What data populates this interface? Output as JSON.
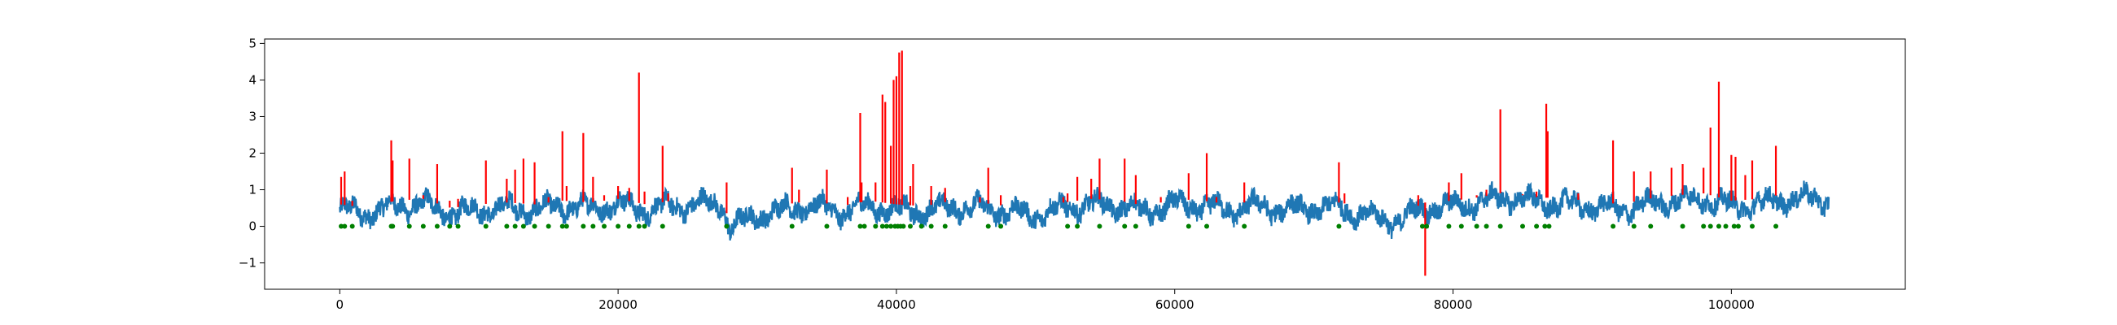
{
  "chart_data": {
    "type": "line",
    "title": "",
    "xlabel": "",
    "ylabel": "",
    "xlim": [
      -5400,
      112500
    ],
    "ylim": [
      -1.72,
      5.12
    ],
    "x_ticks": [
      0,
      20000,
      40000,
      60000,
      80000,
      100000
    ],
    "x_tick_labels": [
      "0",
      "20000",
      "40000",
      "60000",
      "80000",
      "100000"
    ],
    "y_ticks": [
      -1,
      0,
      1,
      2,
      3,
      4,
      5
    ],
    "y_tick_labels": [
      "−1",
      "0",
      "1",
      "2",
      "3",
      "4",
      "5"
    ],
    "grid": false,
    "colors": {
      "signal": "#1f77b4",
      "anomaly": "#ff0000",
      "marker": "#008000"
    },
    "signal": {
      "x_range": [
        0,
        107000
      ],
      "points": [
        [
          0,
          0.45
        ],
        [
          2000,
          0.35
        ],
        [
          4000,
          0.55
        ],
        [
          6000,
          0.6
        ],
        [
          8000,
          0.35
        ],
        [
          10000,
          0.45
        ],
        [
          12000,
          0.5
        ],
        [
          14000,
          0.45
        ],
        [
          16000,
          0.55
        ],
        [
          18000,
          0.5
        ],
        [
          20000,
          0.6
        ],
        [
          22000,
          0.45
        ],
        [
          24000,
          0.55
        ],
        [
          26000,
          0.6
        ],
        [
          27500,
          0.6
        ],
        [
          28000,
          -0.05
        ],
        [
          30000,
          0.3
        ],
        [
          32000,
          0.45
        ],
        [
          34000,
          0.55
        ],
        [
          36000,
          0.4
        ],
        [
          38000,
          0.55
        ],
        [
          40000,
          0.45
        ],
        [
          42000,
          0.4
        ],
        [
          44000,
          0.55
        ],
        [
          46000,
          0.5
        ],
        [
          48000,
          0.4
        ],
        [
          50000,
          0.3
        ],
        [
          52000,
          0.5
        ],
        [
          54000,
          0.6
        ],
        [
          56000,
          0.55
        ],
        [
          58000,
          0.4
        ],
        [
          60000,
          0.6
        ],
        [
          62000,
          0.55
        ],
        [
          64000,
          0.45
        ],
        [
          66000,
          0.55
        ],
        [
          68000,
          0.45
        ],
        [
          70000,
          0.5
        ],
        [
          72000,
          0.5
        ],
        [
          74000,
          0.25
        ],
        [
          76000,
          0.15
        ],
        [
          78000,
          0.5
        ],
        [
          80000,
          0.55
        ],
        [
          82000,
          0.65
        ],
        [
          84000,
          0.8
        ],
        [
          86000,
          0.65
        ],
        [
          88000,
          0.6
        ],
        [
          90000,
          0.55
        ],
        [
          92000,
          0.45
        ],
        [
          94000,
          0.6
        ],
        [
          96000,
          0.7
        ],
        [
          98000,
          0.75
        ],
        [
          100000,
          0.55
        ],
        [
          102000,
          0.6
        ],
        [
          104000,
          0.75
        ],
        [
          106000,
          0.75
        ],
        [
          107000,
          0.7
        ]
      ]
    },
    "anomaly_spikes": [
      [
        100,
        1.35
      ],
      [
        350,
        1.5
      ],
      [
        900,
        0.7
      ],
      [
        3700,
        2.35
      ],
      [
        3800,
        1.8
      ],
      [
        5000,
        1.85
      ],
      [
        6000,
        0.85
      ],
      [
        7000,
        1.7
      ],
      [
        7900,
        0.7
      ],
      [
        8500,
        0.75
      ],
      [
        10500,
        1.8
      ],
      [
        12000,
        1.3
      ],
      [
        12600,
        1.55
      ],
      [
        13200,
        1.85
      ],
      [
        14000,
        1.75
      ],
      [
        15000,
        0.8
      ],
      [
        16000,
        2.6
      ],
      [
        16300,
        1.1
      ],
      [
        17500,
        2.55
      ],
      [
        18200,
        1.35
      ],
      [
        19000,
        0.85
      ],
      [
        20000,
        1.1
      ],
      [
        20800,
        1.05
      ],
      [
        21500,
        4.2
      ],
      [
        21900,
        0.95
      ],
      [
        23200,
        2.2
      ],
      [
        23600,
        0.9
      ],
      [
        27800,
        1.2
      ],
      [
        32500,
        1.6
      ],
      [
        33000,
        1.0
      ],
      [
        35000,
        1.55
      ],
      [
        36500,
        0.8
      ],
      [
        37400,
        3.1
      ],
      [
        37500,
        1.2
      ],
      [
        38500,
        1.2
      ],
      [
        39000,
        3.6
      ],
      [
        39200,
        3.4
      ],
      [
        39600,
        2.2
      ],
      [
        39800,
        4.0
      ],
      [
        40000,
        4.1
      ],
      [
        40200,
        4.75
      ],
      [
        40400,
        4.8
      ],
      [
        41000,
        1.1
      ],
      [
        41200,
        1.7
      ],
      [
        42500,
        1.1
      ],
      [
        43500,
        1.05
      ],
      [
        46000,
        0.8
      ],
      [
        46600,
        1.6
      ],
      [
        47500,
        0.85
      ],
      [
        52000,
        0.8
      ],
      [
        52300,
        0.9
      ],
      [
        53000,
        1.35
      ],
      [
        54000,
        1.3
      ],
      [
        54600,
        1.85
      ],
      [
        56400,
        1.85
      ],
      [
        57200,
        1.4
      ],
      [
        59000,
        0.8
      ],
      [
        61000,
        1.45
      ],
      [
        62300,
        2.0
      ],
      [
        63000,
        0.8
      ],
      [
        65000,
        1.2
      ],
      [
        71800,
        1.75
      ],
      [
        72200,
        0.9
      ],
      [
        77500,
        0.85
      ],
      [
        78000,
        -1.35
      ],
      [
        79700,
        1.2
      ],
      [
        80600,
        1.45
      ],
      [
        81700,
        0.85
      ],
      [
        82400,
        1.0
      ],
      [
        83400,
        3.2
      ],
      [
        85000,
        0.85
      ],
      [
        86000,
        0.95
      ],
      [
        86700,
        3.35
      ],
      [
        86800,
        2.6
      ],
      [
        89000,
        0.9
      ],
      [
        91500,
        2.35
      ],
      [
        93000,
        1.5
      ],
      [
        94200,
        1.5
      ],
      [
        95700,
        1.6
      ],
      [
        96500,
        1.7
      ],
      [
        98000,
        1.6
      ],
      [
        98500,
        2.7
      ],
      [
        99100,
        3.95
      ],
      [
        100000,
        1.95
      ],
      [
        100300,
        1.9
      ],
      [
        101000,
        1.4
      ],
      [
        101500,
        1.8
      ],
      [
        103200,
        2.2
      ]
    ],
    "markers": {
      "y": 0,
      "x": [
        100,
        350,
        900,
        3700,
        3800,
        5000,
        6000,
        7000,
        7900,
        8500,
        10500,
        12000,
        12600,
        13200,
        14000,
        15000,
        16000,
        16300,
        17500,
        18200,
        19000,
        20000,
        20800,
        21500,
        21900,
        23200,
        27800,
        32500,
        35000,
        37400,
        37700,
        38500,
        39000,
        39300,
        39600,
        39900,
        40100,
        40300,
        40500,
        41000,
        41800,
        42500,
        43500,
        46600,
        47500,
        52300,
        53000,
        54600,
        56400,
        57200,
        61000,
        62300,
        65000,
        71800,
        77800,
        78100,
        79700,
        80600,
        81700,
        82400,
        83400,
        85000,
        86000,
        86600,
        86900,
        91500,
        93000,
        94200,
        96500,
        98000,
        98500,
        99100,
        99600,
        100200,
        100500,
        101500,
        103200
      ]
    }
  }
}
